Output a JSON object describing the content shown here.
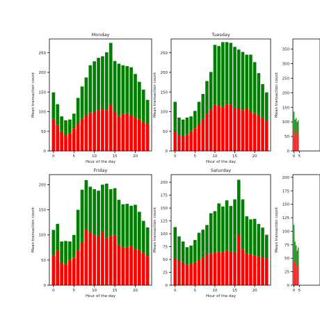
{
  "colors": {
    "lower": "#ff0000",
    "upper": "#008000",
    "axis": "#000000"
  },
  "chart_data": [
    {
      "type": "bar",
      "title": "Monday",
      "xlabel": "Hour of the day",
      "ylabel": "Mean transaction count",
      "stacked": true,
      "x": [
        0,
        1,
        2,
        3,
        4,
        5,
        6,
        7,
        8,
        9,
        10,
        11,
        12,
        13,
        14,
        15,
        16,
        17,
        18,
        19,
        20,
        21,
        22,
        23
      ],
      "xticks": [
        0,
        5,
        10,
        15,
        20
      ],
      "yticks": [
        0,
        50,
        100,
        150,
        200,
        250
      ],
      "ylim": [
        0,
        285
      ],
      "series": [
        {
          "values": [
            82,
            66,
            50,
            40,
            45,
            58,
            70,
            82,
            92,
            97,
            100,
            104,
            107,
            104,
            118,
            100,
            88,
            94,
            96,
            92,
            86,
            80,
            74,
            70
          ]
        },
        {
          "values": [
            67,
            53,
            38,
            38,
            35,
            37,
            65,
            82,
            95,
            121,
            128,
            133,
            134,
            147,
            157,
            129,
            134,
            124,
            120,
            121,
            110,
            96,
            82,
            60
          ]
        }
      ]
    },
    {
      "type": "bar",
      "title": "Tuesday",
      "xlabel": "Hour of the day",
      "ylabel": "Mean transaction count",
      "stacked": true,
      "x": [
        0,
        1,
        2,
        3,
        4,
        5,
        6,
        7,
        8,
        9,
        10,
        11,
        12,
        13,
        14,
        15,
        16,
        17,
        18,
        19,
        20,
        21,
        22,
        23
      ],
      "xticks": [
        0,
        5,
        10,
        15,
        20
      ],
      "yticks": [
        0,
        50,
        100,
        150,
        200,
        250
      ],
      "ylim": [
        0,
        285
      ],
      "series": [
        {
          "values": [
            48,
            40,
            38,
            42,
            50,
            58,
            68,
            82,
            95,
            105,
            118,
            115,
            112,
            120,
            118,
            110,
            108,
            104,
            108,
            100,
            96,
            90,
            84,
            76
          ]
        },
        {
          "values": [
            77,
            45,
            42,
            43,
            38,
            44,
            57,
            63,
            83,
            96,
            152,
            152,
            165,
            157,
            157,
            155,
            150,
            148,
            137,
            145,
            130,
            108,
            86,
            73
          ]
        }
      ]
    },
    {
      "type": "bar",
      "title": "",
      "xlabel": "",
      "ylabel": "Mean transaction count",
      "stacked": true,
      "x": [
        0,
        1,
        2,
        3,
        4
      ],
      "xticks": [
        0,
        5
      ],
      "yticks": [
        0,
        50,
        100,
        150,
        200,
        250,
        300,
        350
      ],
      "ylim": [
        0,
        385
      ],
      "series": [
        {
          "values": [
            70,
            58,
            75,
            48,
            60
          ]
        },
        {
          "values": [
            65,
            50,
            38,
            52,
            45
          ]
        }
      ]
    },
    {
      "type": "bar",
      "title": "Friday",
      "xlabel": "Hour of the day",
      "ylabel": "Mean transaction count",
      "stacked": true,
      "x": [
        0,
        1,
        2,
        3,
        4,
        5,
        6,
        7,
        8,
        9,
        10,
        11,
        12,
        13,
        14,
        15,
        16,
        17,
        18,
        19,
        20,
        21,
        22,
        23
      ],
      "xticks": [
        0,
        5,
        10,
        15,
        20
      ],
      "yticks": [
        0,
        50,
        100,
        150,
        200
      ],
      "ylim": [
        0,
        220
      ],
      "series": [
        {
          "values": [
            60,
            70,
            45,
            42,
            50,
            55,
            70,
            85,
            112,
            105,
            100,
            98,
            106,
            95,
            98,
            100,
            80,
            76,
            75,
            78,
            72,
            70,
            64,
            58
          ]
        },
        {
          "values": [
            50,
            52,
            42,
            46,
            37,
            45,
            80,
            105,
            97,
            91,
            91,
            90,
            94,
            107,
            93,
            93,
            90,
            85,
            87,
            80,
            88,
            76,
            64,
            57
          ]
        }
      ]
    },
    {
      "type": "bar",
      "title": "Saturday",
      "xlabel": "Hour of the day",
      "ylabel": "Mean transaction count",
      "stacked": true,
      "x": [
        0,
        1,
        2,
        3,
        4,
        5,
        6,
        7,
        8,
        9,
        10,
        11,
        12,
        13,
        14,
        15,
        16,
        17,
        18,
        19,
        20,
        21,
        22,
        23
      ],
      "xticks": [
        0,
        5,
        10,
        15,
        20
      ],
      "yticks": [
        0,
        25,
        50,
        75,
        100,
        125,
        150,
        175,
        200
      ],
      "ylim": [
        0,
        215
      ],
      "series": [
        {
          "values": [
            52,
            48,
            45,
            40,
            42,
            45,
            50,
            55,
            60,
            62,
            64,
            66,
            64,
            68,
            66,
            64,
            98,
            70,
            62,
            60,
            58,
            56,
            54,
            52
          ]
        },
        {
          "values": [
            61,
            47,
            40,
            34,
            35,
            43,
            52,
            53,
            57,
            78,
            80,
            93,
            89,
            97,
            88,
            103,
            107,
            97,
            72,
            68,
            71,
            63,
            58,
            46
          ]
        }
      ]
    },
    {
      "type": "bar",
      "title": "",
      "xlabel": "",
      "ylabel": "Mean transaction count",
      "stacked": true,
      "x": [
        0,
        1,
        2,
        3,
        4
      ],
      "xticks": [
        0,
        5
      ],
      "yticks": [
        0,
        25,
        50,
        75,
        100,
        125,
        150,
        175,
        200
      ],
      "ylim": [
        0,
        205
      ],
      "series": [
        {
          "values": [
            45,
            42,
            32,
            38,
            36
          ]
        },
        {
          "values": [
            67,
            39,
            42,
            26,
            34
          ]
        }
      ]
    }
  ]
}
